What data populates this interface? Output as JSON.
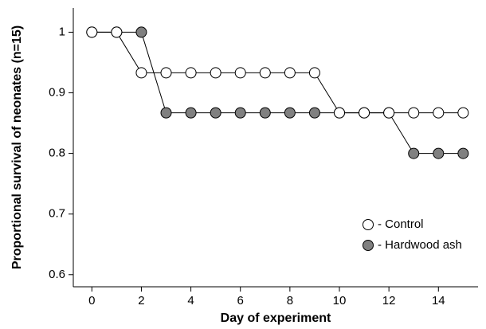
{
  "chart_data": {
    "type": "line",
    "x_label": "Day of experiment",
    "y_label": "Proportional survival of neonates (n=15)",
    "x": [
      0,
      1,
      2,
      3,
      4,
      5,
      6,
      7,
      8,
      9,
      10,
      11,
      12,
      13,
      14,
      15
    ],
    "series": [
      {
        "name": "- Control",
        "color": "#ffffff",
        "values": [
          1,
          1,
          0.933,
          0.933,
          0.933,
          0.933,
          0.933,
          0.933,
          0.933,
          0.933,
          0.867,
          0.867,
          0.867,
          0.867,
          0.867,
          0.867
        ]
      },
      {
        "name": "- Hardwood ash",
        "color": "#808080",
        "values": [
          1,
          1,
          1,
          0.867,
          0.867,
          0.867,
          0.867,
          0.867,
          0.867,
          0.867,
          0.867,
          0.867,
          0.867,
          0.8,
          0.8,
          0.8
        ]
      }
    ],
    "xlim": [
      -0.75,
      15.6
    ],
    "ylim": [
      0.58,
      1.04
    ],
    "xticks": [
      0,
      2,
      4,
      6,
      8,
      10,
      12,
      14
    ],
    "yticks": [
      0.6,
      0.7,
      0.8,
      0.9,
      1
    ],
    "legend": "lower right",
    "grid": false
  }
}
